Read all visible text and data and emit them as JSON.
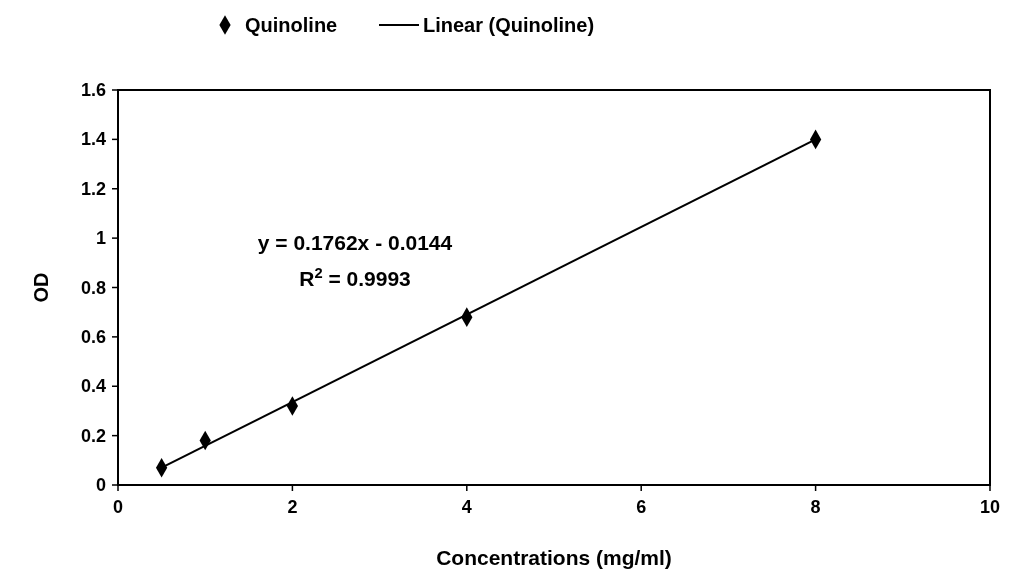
{
  "chart_data": {
    "type": "scatter",
    "xlabel": "Concentrations (mg/ml)",
    "ylabel": "OD",
    "xlim": [
      0,
      10
    ],
    "xticks": [
      0,
      2,
      4,
      6,
      8,
      10
    ],
    "ylim": [
      0,
      1.6
    ],
    "yticks": [
      0,
      0.2,
      0.4,
      0.6,
      0.8,
      1,
      1.2,
      1.4,
      1.6
    ],
    "legend": "top",
    "grid": false,
    "series": [
      {
        "name": "Quinoline",
        "marker": "diamond",
        "color": "#000000",
        "x": [
          0.5,
          1,
          2,
          4,
          8
        ],
        "values": [
          0.07,
          0.18,
          0.32,
          0.68,
          1.4
        ]
      },
      {
        "name": "Linear (Quinoline)",
        "type": "line",
        "marker": "none",
        "line_style": "solid",
        "color": "#000000",
        "x": [
          0.5,
          8
        ],
        "values": [
          0.07,
          1.4
        ]
      }
    ],
    "annotations": [
      "y = 0.1762x - 0.0144",
      "R$^{2}$ = 0.9993"
    ]
  }
}
